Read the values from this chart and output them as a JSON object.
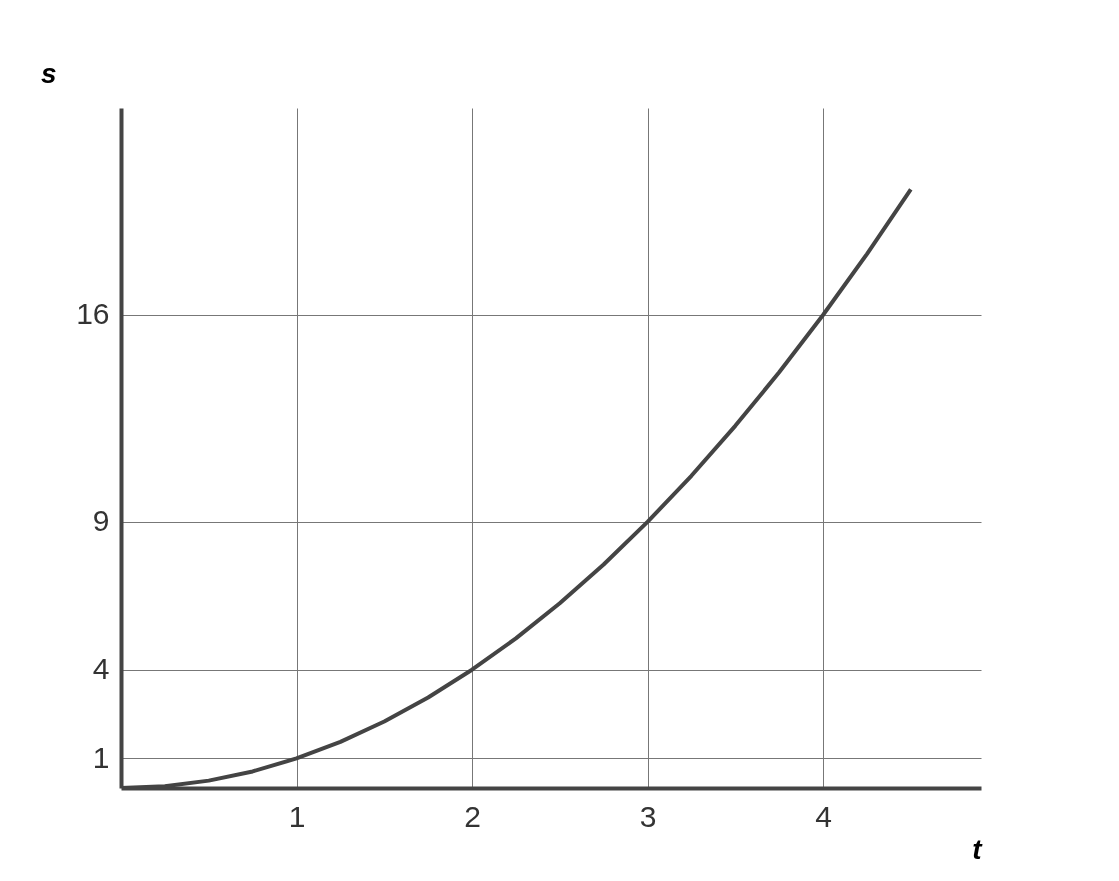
{
  "chart_data": {
    "type": "line",
    "xlabel": "t",
    "ylabel": "s",
    "x": [
      0,
      0.25,
      0.5,
      0.75,
      1,
      1.25,
      1.5,
      1.75,
      2,
      2.25,
      2.5,
      2.75,
      3,
      3.25,
      3.5,
      3.75,
      4,
      4.25,
      4.5
    ],
    "series": [
      {
        "color": "#444444",
        "values": [
          0,
          0.06,
          0.25,
          0.56,
          1,
          1.56,
          2.25,
          3.06,
          4,
          5.06,
          6.25,
          7.56,
          9,
          10.56,
          12.25,
          14.06,
          16,
          18.06,
          20.25
        ]
      }
    ],
    "xlim": [
      0,
      4.9
    ],
    "ylim": [
      0,
      23
    ],
    "xticks": [
      1,
      2,
      3,
      4
    ],
    "yticks": [
      1,
      4,
      9,
      16
    ],
    "grid": true,
    "marker": "none",
    "line_style": "solid"
  }
}
